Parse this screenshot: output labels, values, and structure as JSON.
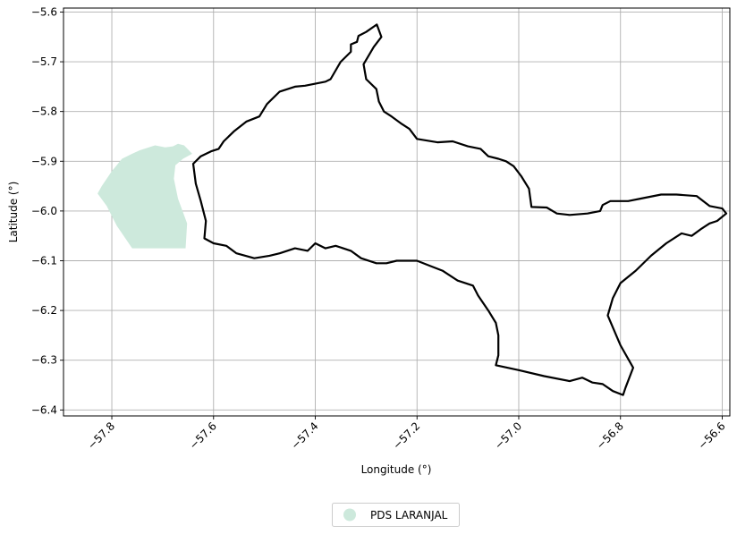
{
  "chart_data": {
    "type": "map",
    "xlabel": "Longitude (°)",
    "ylabel": "Latitude (°)",
    "xlim": [
      -57.895,
      -56.585
    ],
    "ylim": [
      -6.412,
      -5.592
    ],
    "grid": true,
    "xticks": [
      -57.8,
      -57.6,
      -57.4,
      -57.2,
      -57.0,
      -56.8,
      -56.6
    ],
    "xtick_labels": [
      "−57.8",
      "−57.6",
      "−57.4",
      "−57.2",
      "−57.0",
      "−56.8",
      "−56.6"
    ],
    "yticks": [
      -5.6,
      -5.7,
      -5.8,
      -5.9,
      -6.0,
      -6.1,
      -6.2,
      -6.3,
      -6.4
    ],
    "ytick_labels": [
      "−5.6",
      "−5.7",
      "−5.8",
      "−5.9",
      "−6.0",
      "−6.1",
      "−6.2",
      "−6.3",
      "−6.4"
    ],
    "legend_position": "bottom-center",
    "layers": [
      {
        "name": "PDS LARANJAL",
        "kind": "filled-polygon",
        "fill_color": "#cde9dc",
        "coordinates": [
          [
            -57.67,
            -5.865
          ],
          [
            -57.68,
            -5.87
          ],
          [
            -57.695,
            -5.872
          ],
          [
            -57.715,
            -5.868
          ],
          [
            -57.745,
            -5.878
          ],
          [
            -57.76,
            -5.885
          ],
          [
            -57.78,
            -5.895
          ],
          [
            -57.8,
            -5.92
          ],
          [
            -57.82,
            -5.95
          ],
          [
            -57.828,
            -5.965
          ],
          [
            -57.81,
            -5.99
          ],
          [
            -57.79,
            -6.03
          ],
          [
            -57.76,
            -6.075
          ],
          [
            -57.655,
            -6.075
          ],
          [
            -57.652,
            -6.025
          ],
          [
            -57.67,
            -5.975
          ],
          [
            -57.678,
            -5.935
          ],
          [
            -57.675,
            -5.908
          ],
          [
            -57.66,
            -5.895
          ],
          [
            -57.642,
            -5.885
          ],
          [
            -57.658,
            -5.868
          ],
          [
            -57.67,
            -5.865
          ]
        ]
      },
      {
        "name": "",
        "kind": "outline",
        "stroke_color": "#000000",
        "coordinates": [
          [
            -57.279,
            -5.625
          ],
          [
            -57.3,
            -5.64
          ],
          [
            -57.315,
            -5.648
          ],
          [
            -57.318,
            -5.66
          ],
          [
            -57.33,
            -5.665
          ],
          [
            -57.33,
            -5.68
          ],
          [
            -57.35,
            -5.7
          ],
          [
            -57.37,
            -5.735
          ],
          [
            -57.38,
            -5.74
          ],
          [
            -57.42,
            -5.748
          ],
          [
            -57.44,
            -5.75
          ],
          [
            -57.47,
            -5.76
          ],
          [
            -57.495,
            -5.785
          ],
          [
            -57.51,
            -5.81
          ],
          [
            -57.535,
            -5.82
          ],
          [
            -57.56,
            -5.84
          ],
          [
            -57.58,
            -5.86
          ],
          [
            -57.59,
            -5.875
          ],
          [
            -57.605,
            -5.88
          ],
          [
            -57.625,
            -5.89
          ],
          [
            -57.64,
            -5.905
          ],
          [
            -57.635,
            -5.945
          ],
          [
            -57.625,
            -5.98
          ],
          [
            -57.615,
            -6.02
          ],
          [
            -57.618,
            -6.055
          ],
          [
            -57.6,
            -6.065
          ],
          [
            -57.575,
            -6.07
          ],
          [
            -57.555,
            -6.085
          ],
          [
            -57.52,
            -6.095
          ],
          [
            -57.49,
            -6.09
          ],
          [
            -57.47,
            -6.085
          ],
          [
            -57.44,
            -6.075
          ],
          [
            -57.415,
            -6.08
          ],
          [
            -57.4,
            -6.065
          ],
          [
            -57.38,
            -6.075
          ],
          [
            -57.36,
            -6.07
          ],
          [
            -57.33,
            -6.08
          ],
          [
            -57.31,
            -6.095
          ],
          [
            -57.28,
            -6.105
          ],
          [
            -57.26,
            -6.105
          ],
          [
            -57.24,
            -6.1
          ],
          [
            -57.2,
            -6.1
          ],
          [
            -57.175,
            -6.11
          ],
          [
            -57.15,
            -6.12
          ],
          [
            -57.12,
            -6.14
          ],
          [
            -57.09,
            -6.15
          ],
          [
            -57.08,
            -6.17
          ],
          [
            -57.07,
            -6.185
          ],
          [
            -57.06,
            -6.2
          ],
          [
            -57.045,
            -6.225
          ],
          [
            -57.04,
            -6.25
          ],
          [
            -57.04,
            -6.29
          ],
          [
            -57.045,
            -6.31
          ],
          [
            -57.0,
            -6.32
          ],
          [
            -56.95,
            -6.332
          ],
          [
            -56.9,
            -6.342
          ],
          [
            -56.875,
            -6.335
          ],
          [
            -56.855,
            -6.345
          ],
          [
            -56.835,
            -6.348
          ],
          [
            -56.815,
            -6.362
          ],
          [
            -56.795,
            -6.37
          ],
          [
            -56.79,
            -6.355
          ],
          [
            -56.775,
            -6.315
          ],
          [
            -56.8,
            -6.27
          ],
          [
            -56.825,
            -6.21
          ],
          [
            -56.815,
            -6.175
          ],
          [
            -56.8,
            -6.145
          ],
          [
            -56.77,
            -6.12
          ],
          [
            -56.74,
            -6.09
          ],
          [
            -56.71,
            -6.065
          ],
          [
            -56.68,
            -6.045
          ],
          [
            -56.66,
            -6.05
          ],
          [
            -56.64,
            -6.035
          ],
          [
            -56.625,
            -6.025
          ],
          [
            -56.61,
            -6.02
          ],
          [
            -56.592,
            -6.005
          ],
          [
            -56.6,
            -5.995
          ],
          [
            -56.625,
            -5.99
          ],
          [
            -56.65,
            -5.97
          ],
          [
            -56.69,
            -5.967
          ],
          [
            -56.72,
            -5.967
          ],
          [
            -56.76,
            -5.975
          ],
          [
            -56.785,
            -5.98
          ],
          [
            -56.82,
            -5.98
          ],
          [
            -56.835,
            -5.988
          ],
          [
            -56.84,
            -6.0
          ],
          [
            -56.865,
            -6.005
          ],
          [
            -56.9,
            -6.008
          ],
          [
            -56.925,
            -6.005
          ],
          [
            -56.945,
            -5.993
          ],
          [
            -56.975,
            -5.992
          ],
          [
            -56.98,
            -5.955
          ],
          [
            -56.995,
            -5.93
          ],
          [
            -57.01,
            -5.91
          ],
          [
            -57.025,
            -5.9
          ],
          [
            -57.04,
            -5.895
          ],
          [
            -57.06,
            -5.89
          ],
          [
            -57.075,
            -5.875
          ],
          [
            -57.1,
            -5.87
          ],
          [
            -57.13,
            -5.86
          ],
          [
            -57.16,
            -5.862
          ],
          [
            -57.2,
            -5.855
          ],
          [
            -57.215,
            -5.835
          ],
          [
            -57.23,
            -5.825
          ],
          [
            -57.25,
            -5.81
          ],
          [
            -57.265,
            -5.8
          ],
          [
            -57.275,
            -5.78
          ],
          [
            -57.28,
            -5.755
          ],
          [
            -57.3,
            -5.735
          ],
          [
            -57.305,
            -5.705
          ],
          [
            -57.285,
            -5.67
          ],
          [
            -57.27,
            -5.65
          ],
          [
            -57.279,
            -5.625
          ]
        ]
      }
    ]
  },
  "legend": {
    "label": "PDS LARANJAL",
    "marker_color": "#cde9dc"
  }
}
